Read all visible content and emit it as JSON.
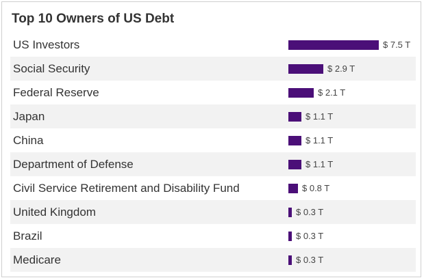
{
  "chart_data": {
    "type": "bar",
    "title": "Top 10 Owners of US Debt",
    "categories": [
      "US Investors",
      "Social Security",
      "Federal Reserve",
      "Japan",
      "China",
      "Department of Defense",
      "Civil Service Retirement and Disability Fund",
      "United Kingdom",
      "Brazil",
      "Medicare"
    ],
    "values": [
      7.5,
      2.9,
      2.1,
      1.1,
      1.1,
      1.1,
      0.8,
      0.3,
      0.3,
      0.3
    ],
    "value_labels": [
      "$ 7.5 T",
      "$ 2.9 T",
      "$ 2.1 T",
      "$ 1.1 T",
      "$ 1.1 T",
      "$ 1.1 T",
      "$ 0.8 T",
      "$ 0.3 T",
      "$ 0.3 T",
      "$ 0.3 T"
    ],
    "bar_color": "#4b0f78",
    "orientation": "horizontal",
    "xlim": [
      0,
      7.5
    ]
  }
}
